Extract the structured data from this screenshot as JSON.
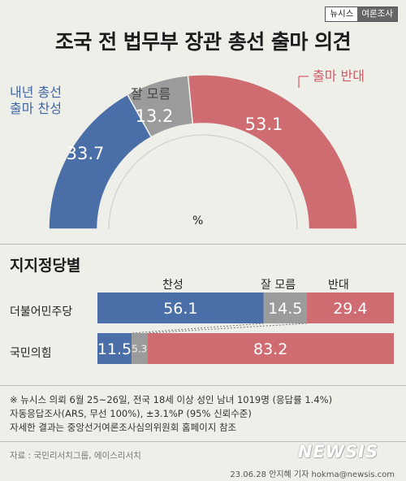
{
  "badge": {
    "source": "뉴시스",
    "category": "여론조사"
  },
  "title": "조국 전 법무부 장관 총선 출마 의견",
  "colors": {
    "support": "#4a6fa8",
    "unknown": "#9b9b9b",
    "oppose": "#cf6c72",
    "oppose_text": "#cf5a62",
    "support_text": "#3f66a8"
  },
  "gauge_labels": {
    "support": "내년 총선\n출마 찬성",
    "unknown": "잘 모름",
    "oppose": "출마 반대"
  },
  "unit": "%",
  "section_title": "지지정당별",
  "col_headers": {
    "support": "찬성",
    "unknown": "잘 모름",
    "oppose": "반대"
  },
  "chart_data": [
    {
      "type": "pie",
      "categories": [
        "내년 총선 출마 찬성",
        "잘 모름",
        "출마 반대"
      ],
      "values": [
        33.7,
        13.2,
        53.1
      ],
      "unit": "%",
      "title": "조국 전 법무부 장관 총선 출마 의견"
    },
    {
      "type": "bar",
      "stacked": true,
      "orientation": "horizontal",
      "categories": [
        "더불어민주당",
        "국민의힘"
      ],
      "series": [
        {
          "name": "찬성",
          "values": [
            56.1,
            11.5
          ]
        },
        {
          "name": "잘 모름",
          "values": [
            14.5,
            5.3
          ]
        },
        {
          "name": "반대",
          "values": [
            29.4,
            83.2
          ]
        }
      ],
      "title": "지지정당별"
    }
  ],
  "notes": [
    "※ 뉴시스 의뢰 6월 25~26일, 전국 18세 이상 성인 남녀 1019명 (응답률 1.4%)",
    "자동응답조사(ARS, 무선 100%), ±3.1%P (95% 신뢰수준)",
    "자세한 결과는 중앙선거여론조사심의위원회 홈페이지 참조"
  ],
  "source": "자료 : 국민리서치그룹, 에이스리서치",
  "footer": "23.06.28 안지혜 기자 hokma@newsis.com",
  "brand": "NEWSIS"
}
